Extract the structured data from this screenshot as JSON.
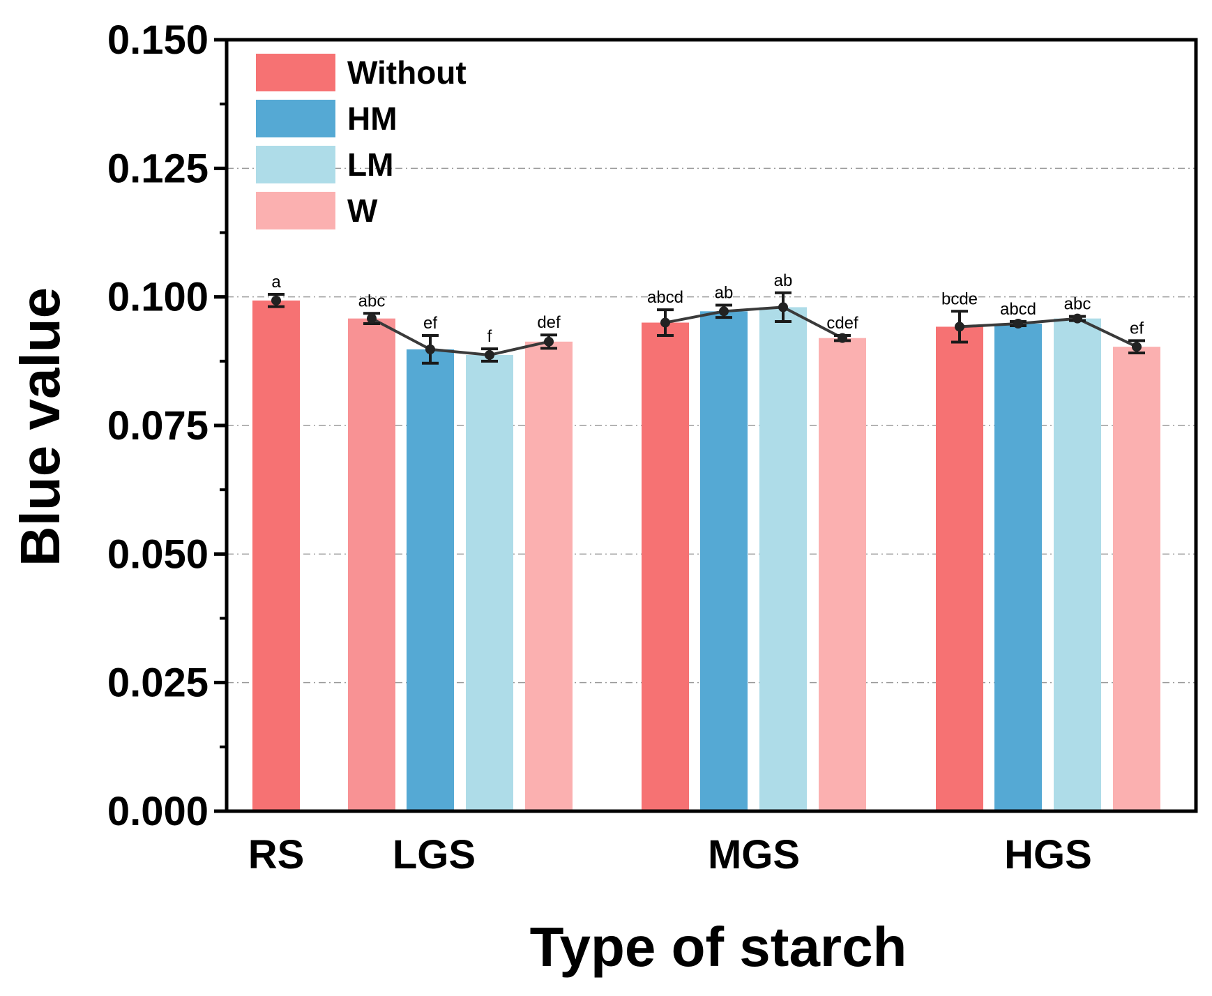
{
  "chart_data": {
    "type": "bar",
    "xlabel": "Type of starch",
    "ylabel": "Blue value",
    "ylim": [
      0,
      0.15
    ],
    "yticks": [
      "0.000",
      "0.025",
      "0.050",
      "0.075",
      "0.100",
      "0.125",
      "0.150"
    ],
    "grid": "horizontal dash-dot",
    "legend_position": "top-left",
    "series": [
      {
        "name": "Without",
        "color": "#F67273"
      },
      {
        "name": "HM",
        "color": "#55A9D4"
      },
      {
        "name": "LM",
        "color": "#AEDCE8"
      },
      {
        "name": "W",
        "color": "#FBB0B0"
      }
    ],
    "groups": [
      {
        "label": "RS",
        "bars": [
          {
            "series": "Without",
            "value": 0.0993,
            "error": 0.0012,
            "sig": "a"
          }
        ]
      },
      {
        "label": "LGS",
        "bars": [
          {
            "series": "W",
            "value": 0.0958,
            "error": 0.001,
            "sig": "abc",
            "color": "#F89294"
          },
          {
            "series": "HM",
            "value": 0.0898,
            "error": 0.0027,
            "sig": "ef"
          },
          {
            "series": "LM",
            "value": 0.0887,
            "error": 0.0012,
            "sig": "f"
          },
          {
            "series": "W",
            "value": 0.0913,
            "error": 0.0013,
            "sig": "def"
          }
        ]
      },
      {
        "label": "MGS",
        "bars": [
          {
            "series": "Without",
            "value": 0.095,
            "error": 0.0025,
            "sig": "abcd"
          },
          {
            "series": "HM",
            "value": 0.0972,
            "error": 0.0012,
            "sig": "ab"
          },
          {
            "series": "LM",
            "value": 0.098,
            "error": 0.0028,
            "sig": "ab"
          },
          {
            "series": "W",
            "value": 0.092,
            "error": 0.0005,
            "sig": "cdef"
          }
        ]
      },
      {
        "label": "HGS",
        "bars": [
          {
            "series": "Without",
            "value": 0.0942,
            "error": 0.003,
            "sig": "bcde"
          },
          {
            "series": "HM",
            "value": 0.0948,
            "error": 0.0004,
            "sig": "abcd"
          },
          {
            "series": "LM",
            "value": 0.0958,
            "error": 0.0004,
            "sig": "abc"
          },
          {
            "series": "W",
            "value": 0.0903,
            "error": 0.0012,
            "sig": "ef"
          }
        ]
      }
    ]
  }
}
